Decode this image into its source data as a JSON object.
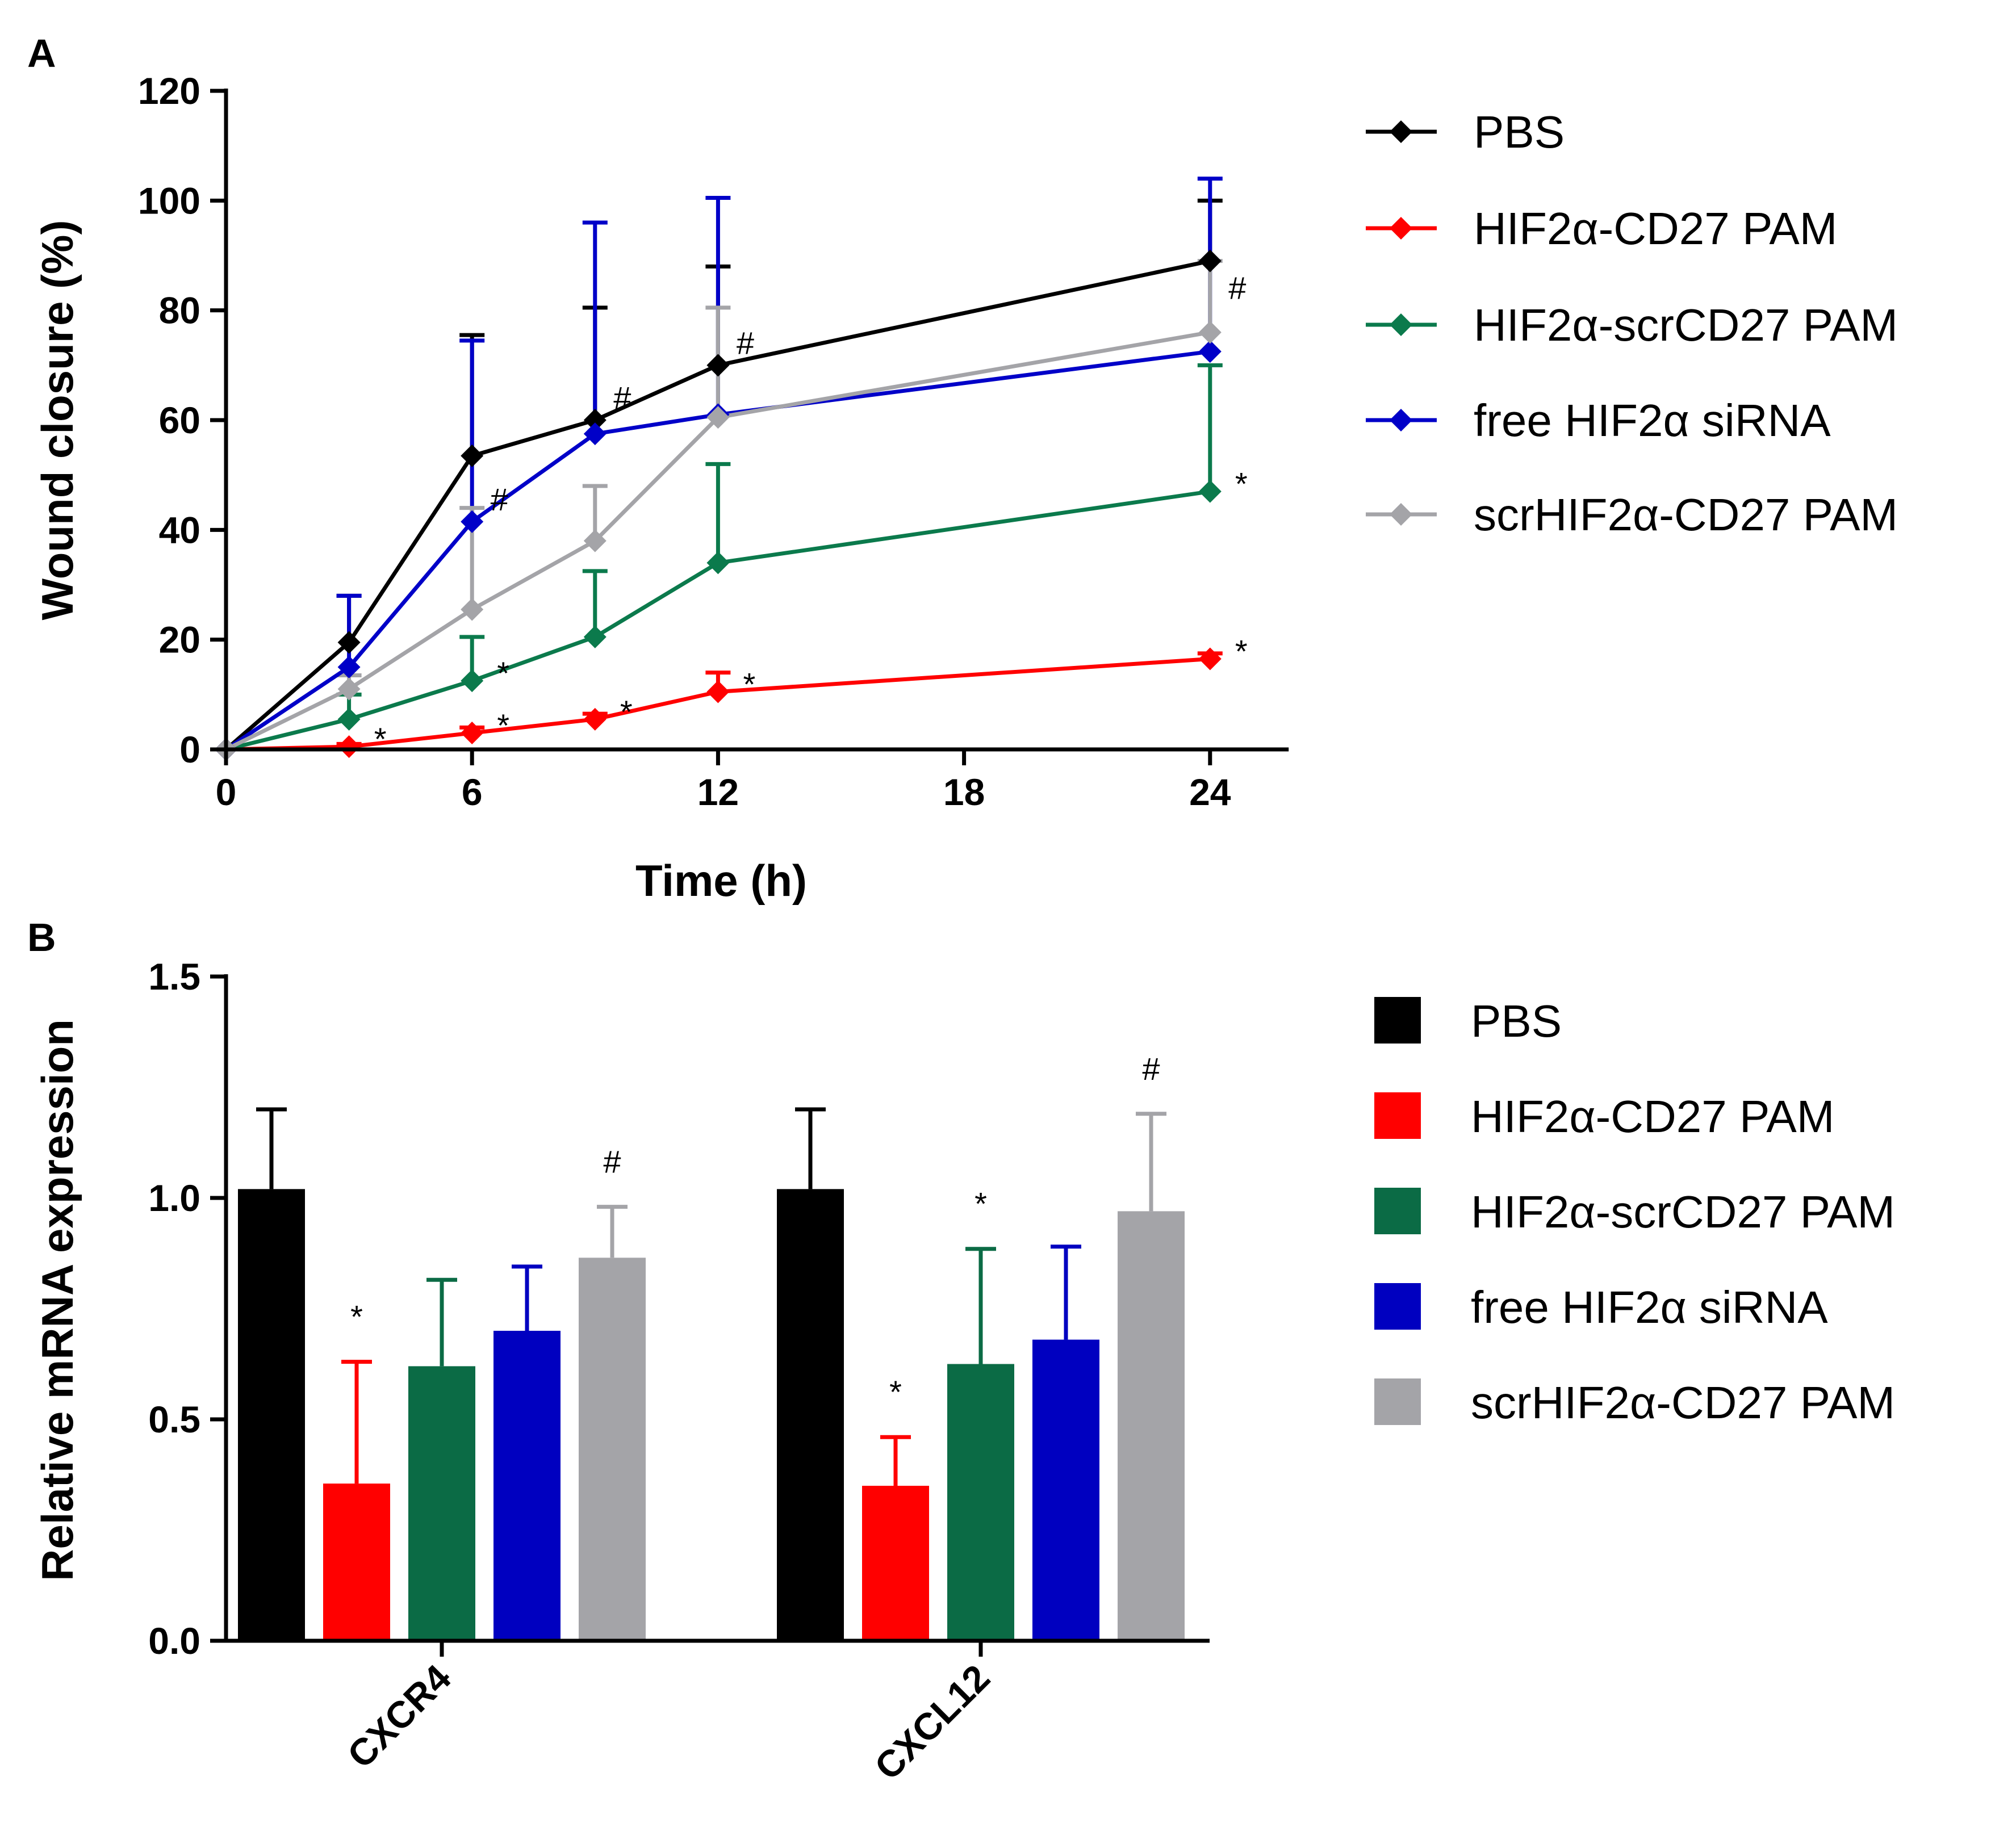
{
  "chart_data": [
    {
      "panel": "A",
      "type": "line",
      "xlabel": "Time (h)",
      "ylabel": "Wound closure (%)",
      "xlim": [
        0,
        26
      ],
      "ylim": [
        0,
        120
      ],
      "xticks": [
        0,
        6,
        12,
        18,
        24
      ],
      "xtick_labels": [
        "0",
        "6",
        "12",
        "18",
        "24"
      ],
      "yticks": [
        0,
        20,
        40,
        60,
        80,
        100,
        120
      ],
      "ytick_labels": [
        "0",
        "20",
        "40",
        "60",
        "80",
        "100",
        "120"
      ],
      "grid": false,
      "legend_position": "right",
      "x": [
        0,
        3,
        6,
        9,
        12,
        24
      ],
      "series": [
        {
          "name": "PBS",
          "color": "#000000",
          "values": [
            0,
            19.5,
            53.5,
            60,
            70,
            89
          ],
          "err": [
            0,
            8.5,
            22,
            20.5,
            18,
            11
          ]
        },
        {
          "name": "HIF2α-CD27 PAM",
          "color": "#ff0000",
          "values": [
            0,
            0.5,
            3,
            5.5,
            10.5,
            16.5
          ],
          "err": [
            0,
            0.5,
            1,
            1,
            3.5,
            1
          ]
        },
        {
          "name": "HIF2α-scrCD27 PAM",
          "color": "#0b7a4c",
          "values": [
            0,
            5.5,
            12.5,
            20.5,
            34,
            47
          ],
          "err": [
            0,
            4.5,
            8,
            12,
            18,
            23
          ]
        },
        {
          "name": "free HIF2α siRNA",
          "color": "#0000c8",
          "values": [
            0,
            15,
            41.5,
            57.5,
            61,
            72.5
          ],
          "err": [
            0,
            13,
            33,
            38.5,
            39.5,
            31.5
          ]
        },
        {
          "name": "scrHIF2α-CD27 PAM",
          "color": "#a4a4a8",
          "values": [
            0,
            11,
            25.5,
            38,
            60.5,
            76
          ],
          "err": [
            0,
            2.5,
            18.5,
            10,
            20,
            13
          ]
        }
      ],
      "annotations": [
        {
          "text": "*",
          "x": 3,
          "y": 0.5
        },
        {
          "text": "*",
          "x": 6,
          "y": 3
        },
        {
          "text": "*",
          "x": 6,
          "y": 12.5
        },
        {
          "text": "#",
          "x": 6,
          "y": 41.5
        },
        {
          "text": "*",
          "x": 9,
          "y": 5.5
        },
        {
          "text": "#",
          "x": 9,
          "y": 60
        },
        {
          "text": "*",
          "x": 12,
          "y": 10.5
        },
        {
          "text": "#",
          "x": 12,
          "y": 70
        },
        {
          "text": "#",
          "x": 24,
          "y": 80
        },
        {
          "text": "*",
          "x": 24,
          "y": 47
        },
        {
          "text": "*",
          "x": 24,
          "y": 16.5
        }
      ]
    },
    {
      "panel": "B",
      "type": "bar",
      "xlabel": "",
      "ylabel": "Relative mRNA expression",
      "ylim": [
        0,
        1.5
      ],
      "yticks": [
        0,
        0.5,
        1.0,
        1.5
      ],
      "ytick_labels": [
        "0.0",
        "0.5",
        "1.0",
        "1.5"
      ],
      "grid": false,
      "legend_position": "right",
      "categories": [
        "CXCR4",
        "CXCL12"
      ],
      "series": [
        {
          "name": "PBS",
          "color": "#000000",
          "values": [
            1.02,
            1.02
          ],
          "err": [
            0.18,
            0.18
          ]
        },
        {
          "name": "HIF2α-CD27 PAM",
          "color": "#ff0000",
          "values": [
            0.355,
            0.35
          ],
          "err": [
            0.275,
            0.11
          ]
        },
        {
          "name": "HIF2α-scrCD27 PAM",
          "color": "#0b6b45",
          "values": [
            0.62,
            0.625
          ],
          "err": [
            0.195,
            0.26
          ]
        },
        {
          "name": "free HIF2α siRNA",
          "color": "#0000c0",
          "values": [
            0.7,
            0.68
          ],
          "err": [
            0.145,
            0.21
          ]
        },
        {
          "name": "scrHIF2α-CD27 PAM",
          "color": "#a4a4a8",
          "values": [
            0.865,
            0.97
          ],
          "err": [
            0.115,
            0.22
          ]
        }
      ],
      "annotations": [
        {
          "text": "*",
          "category": 0,
          "series": 1
        },
        {
          "text": "#",
          "category": 0,
          "series": 4
        },
        {
          "text": "*",
          "category": 1,
          "series": 1
        },
        {
          "text": "*",
          "category": 1,
          "series": 2
        },
        {
          "text": "#",
          "category": 1,
          "series": 4
        }
      ]
    }
  ]
}
